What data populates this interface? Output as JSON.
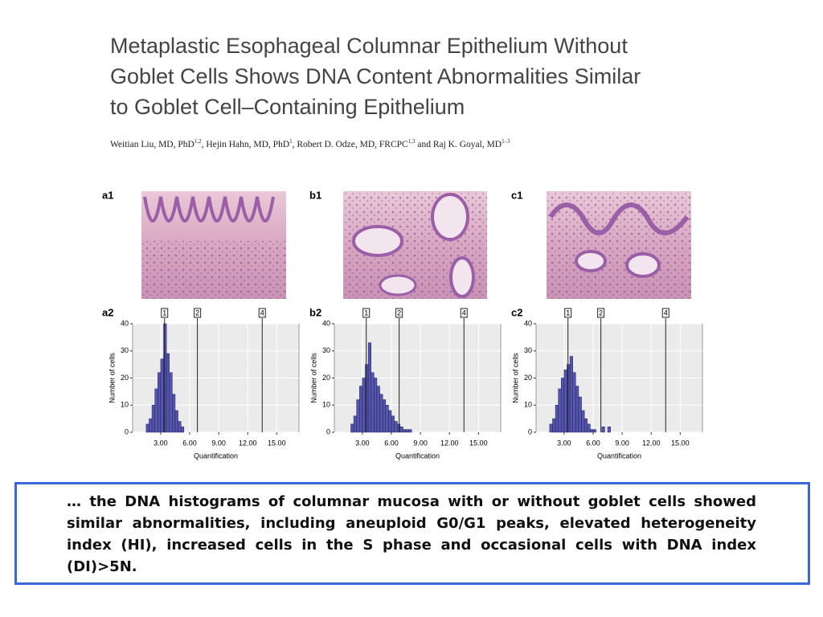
{
  "header": {
    "title_lines": [
      "Metaplastic Esophageal Columnar Epithelium Without",
      "Goblet Cells Shows DNA Content Abnormalities Similar",
      "to Goblet Cell–Containing Epithelium"
    ],
    "authors": [
      {
        "text": "Weitian Liu, MD, PhD",
        "sup": "1,2"
      },
      {
        "text": ", Hejin Hahn, MD, PhD",
        "sup": "1"
      },
      {
        "text": ", Robert D. Odze, MD, FRCPC",
        "sup": "1,3"
      },
      {
        "text": " and Raj K. Goyal, MD",
        "sup": "1–3"
      }
    ]
  },
  "images": [
    {
      "label": "a1"
    },
    {
      "label": "b1"
    },
    {
      "label": "c1"
    }
  ],
  "chart_data": [
    {
      "type": "histogram",
      "label": "a2",
      "xlabel": "Quantification",
      "ylabel": "Number of cells",
      "color": "#3b3b9e",
      "grid": true,
      "bins": [
        1.5,
        1.8,
        2.1,
        2.4,
        2.7,
        3.0,
        3.3,
        3.6,
        3.9,
        4.2,
        4.5,
        4.8,
        5.1,
        5.4
      ],
      "counts": [
        3,
        5,
        10,
        16,
        22,
        27,
        40,
        29,
        22,
        14,
        8,
        4,
        2
      ],
      "xlim": [
        0.1,
        17.3
      ],
      "ylim": [
        0,
        40
      ],
      "xticks": [
        {
          "value": 3,
          "label": "3.00"
        },
        {
          "value": 6,
          "label": "6.00"
        },
        {
          "value": 9,
          "label": "9.00"
        },
        {
          "value": 12,
          "label": "12.00"
        },
        {
          "value": 15,
          "label": "15.00"
        }
      ],
      "yticks": [
        0,
        10,
        20,
        30,
        40
      ],
      "markers": [
        {
          "value": 3.4,
          "label": "1"
        },
        {
          "value": 6.8,
          "label": "2"
        },
        {
          "value": 13.5,
          "label": "4"
        }
      ]
    },
    {
      "type": "histogram",
      "label": "b2",
      "xlabel": "Quantification",
      "ylabel": "Number of cells",
      "color": "#3b3b9e",
      "grid": true,
      "bins": [
        1.8,
        2.1,
        2.4,
        2.7,
        3.0,
        3.3,
        3.6,
        3.9,
        4.2,
        4.5,
        4.8,
        5.1,
        5.4,
        5.7,
        6.0,
        6.3,
        6.6,
        6.9,
        7.2,
        7.5,
        7.8,
        8.1
      ],
      "counts": [
        3,
        6,
        12,
        17,
        20,
        25,
        33,
        22,
        20,
        17,
        14,
        12,
        10,
        8,
        6,
        4,
        3,
        2,
        1,
        1,
        1
      ],
      "xlim": [
        0.1,
        17.3
      ],
      "ylim": [
        0,
        40
      ],
      "xticks": [
        {
          "value": 3,
          "label": "3.00"
        },
        {
          "value": 6,
          "label": "6.00"
        },
        {
          "value": 9,
          "label": "9.00"
        },
        {
          "value": 12,
          "label": "12.00"
        },
        {
          "value": 15,
          "label": "15.00"
        }
      ],
      "yticks": [
        0,
        10,
        20,
        30,
        40
      ],
      "markers": [
        {
          "value": 3.4,
          "label": "1"
        },
        {
          "value": 6.8,
          "label": "2"
        },
        {
          "value": 13.5,
          "label": "4"
        }
      ]
    },
    {
      "type": "histogram",
      "label": "c2",
      "xlabel": "Quantification",
      "ylabel": "Number of cells",
      "color": "#3b3b9e",
      "grid": true,
      "bins": [
        1.5,
        1.8,
        2.1,
        2.4,
        2.7,
        3.0,
        3.3,
        3.6,
        3.9,
        4.2,
        4.5,
        4.8,
        5.1,
        5.4,
        5.7,
        6.0,
        6.3,
        6.6,
        6.9,
        7.2,
        7.5,
        7.8
      ],
      "counts": [
        3,
        5,
        10,
        16,
        20,
        23,
        25,
        28,
        22,
        17,
        13,
        8,
        5,
        3,
        1,
        1,
        0,
        0,
        2,
        0,
        2
      ],
      "xlim": [
        0.1,
        17.3
      ],
      "ylim": [
        0,
        40
      ],
      "xticks": [
        {
          "value": 3,
          "label": "3.00"
        },
        {
          "value": 6,
          "label": "6.00"
        },
        {
          "value": 9,
          "label": "9.00"
        },
        {
          "value": 12,
          "label": "12.00"
        },
        {
          "value": 15,
          "label": "15.00"
        }
      ],
      "yticks": [
        0,
        10,
        20,
        30,
        40
      ],
      "markers": [
        {
          "value": 3.4,
          "label": "1"
        },
        {
          "value": 6.8,
          "label": "2"
        },
        {
          "value": 13.5,
          "label": "4"
        }
      ]
    }
  ],
  "caption": "… the DNA histograms of columnar mucosa with or without goblet cells showed similar abnormalities, including aneuploid G0/G1 peaks, elevated heterogeneity index (HI), increased cells in the S phase and occasional cells with DNA index (DI)>5N."
}
